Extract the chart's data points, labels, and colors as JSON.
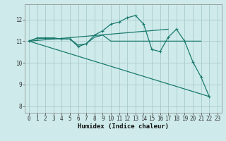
{
  "xlabel": "Humidex (Indice chaleur)",
  "background_color": "#ceeaea",
  "grid_color": "#aacccc",
  "line_color": "#1a7a6e",
  "xlim": [
    -0.5,
    23.5
  ],
  "ylim": [
    7.7,
    12.7
  ],
  "yticks": [
    8,
    9,
    10,
    11,
    12
  ],
  "xticks": [
    0,
    1,
    2,
    3,
    4,
    5,
    6,
    7,
    8,
    9,
    10,
    11,
    12,
    13,
    14,
    15,
    16,
    17,
    18,
    19,
    20,
    21,
    22,
    23
  ],
  "series_flat": {
    "x": [
      0,
      1,
      2,
      3,
      4,
      5,
      6,
      7,
      8,
      9,
      10,
      11,
      12,
      13,
      14,
      15,
      16,
      17,
      18,
      19,
      20,
      21
    ],
    "y": [
      11.0,
      11.12,
      11.13,
      11.12,
      11.1,
      11.1,
      10.82,
      10.88,
      11.18,
      11.28,
      11.0,
      11.0,
      11.0,
      11.0,
      11.0,
      11.0,
      11.0,
      11.0,
      11.0,
      11.0,
      11.0,
      11.0
    ]
  },
  "series_main": {
    "x": [
      0,
      1,
      2,
      3,
      4,
      5,
      6,
      7,
      8,
      9,
      10,
      11,
      12,
      13,
      14,
      15,
      16,
      17,
      18,
      19,
      20,
      21,
      22
    ],
    "y": [
      11.0,
      11.15,
      11.15,
      11.15,
      11.1,
      11.1,
      10.75,
      10.88,
      11.28,
      11.48,
      11.78,
      11.88,
      12.08,
      12.18,
      11.78,
      10.62,
      10.52,
      11.18,
      11.55,
      11.0,
      10.05,
      9.35,
      8.45
    ]
  },
  "series_diag_down": {
    "x": [
      0,
      22
    ],
    "y": [
      11.0,
      8.45
    ]
  },
  "series_diag_up": {
    "x": [
      0,
      17
    ],
    "y": [
      11.0,
      11.55
    ]
  }
}
